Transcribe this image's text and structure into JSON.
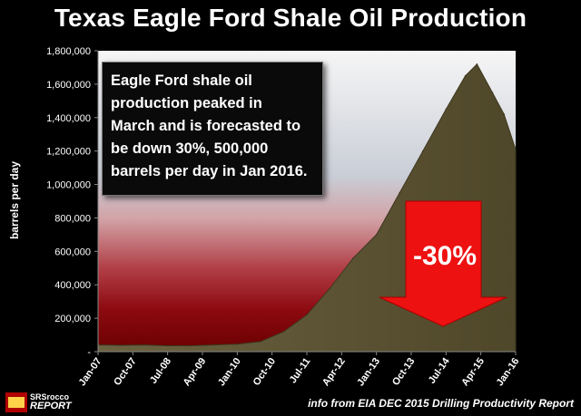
{
  "title": "Texas Eagle Ford Shale Oil Production",
  "annotation": {
    "lines": [
      "Eagle Ford shale oil",
      "production peaked in",
      "March and is forecasted to",
      "be down 30%, 500,000",
      "barrels per day in Jan 2016."
    ]
  },
  "arrow_label": "-30%",
  "source": "info from EIA DEC 2015 Drilling Productivity Report",
  "logo": {
    "line1": "SRSrocco",
    "line2": "REPORT"
  },
  "colors": {
    "area_fill": "#5e5533",
    "arrow": "#ee1111",
    "background_top": "#f4f4f4",
    "background_red": "#8a0000"
  },
  "chart_data": {
    "type": "area",
    "title": "Texas Eagle Ford Shale Oil Production",
    "xlabel": "",
    "ylabel": "barrels per day",
    "ylim": [
      0,
      1800000
    ],
    "yticks": [
      0,
      200000,
      400000,
      600000,
      800000,
      1000000,
      1200000,
      1400000,
      1600000,
      1800000
    ],
    "ytick_labels": [
      "-",
      "200,000",
      "400,000",
      "600,000",
      "800,000",
      "1,000,000",
      "1,200,000",
      "1,400,000",
      "1,600,000",
      "1,800,000"
    ],
    "xtick_labels": [
      "Jan-07",
      "Oct-07",
      "Jul-08",
      "Apr-09",
      "Jan-10",
      "Oct-10",
      "Jul-11",
      "Apr-12",
      "Jan-13",
      "Oct-13",
      "Jul-14",
      "Apr-15",
      "Jan-16"
    ],
    "x": [
      "Jan-07",
      "Jul-07",
      "Jan-08",
      "Jul-08",
      "Jan-09",
      "Jul-09",
      "Jan-10",
      "Jul-10",
      "Jan-11",
      "Jul-11",
      "Jan-12",
      "Jul-12",
      "Jan-13",
      "Jul-13",
      "Jan-14",
      "Jul-14",
      "Dec-14",
      "Mar-15",
      "Jul-15",
      "Oct-15",
      "Jan-16"
    ],
    "values": [
      40000,
      38000,
      40000,
      35000,
      35000,
      40000,
      45000,
      60000,
      120000,
      220000,
      380000,
      560000,
      700000,
      950000,
      1200000,
      1450000,
      1650000,
      1720000,
      1550000,
      1420000,
      1210000
    ],
    "grid": false,
    "legend": "none"
  }
}
